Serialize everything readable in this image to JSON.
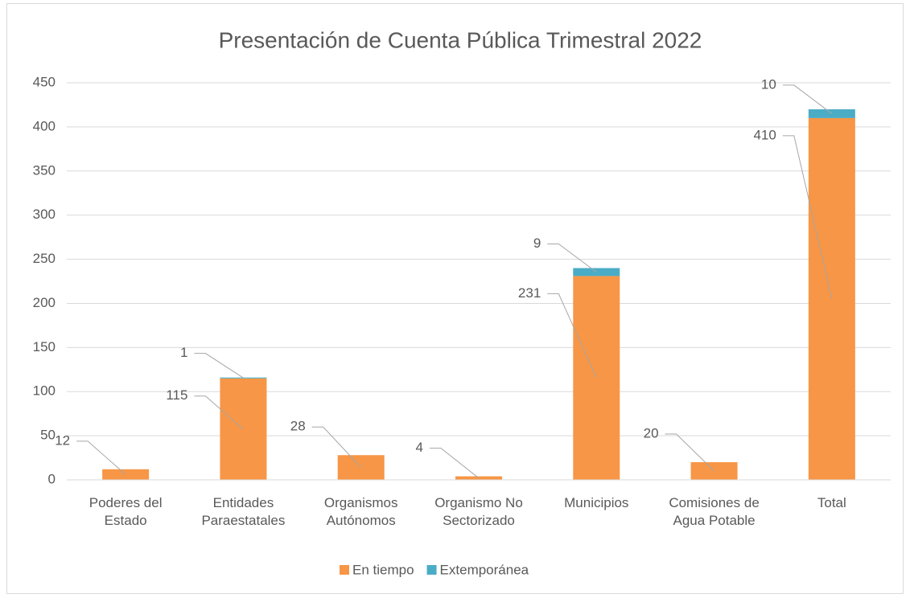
{
  "chart_data": {
    "type": "bar",
    "stacked": true,
    "title": "Presentación de Cuenta Pública Trimestral 2022",
    "categories": [
      "Poderes del Estado",
      "Entidades Paraestatales",
      "Organismos Autónomos",
      "Organismo No Sectorizado",
      "Municipios",
      "Comisiones de Agua Potable",
      "Total"
    ],
    "series": [
      {
        "name": "En tiempo",
        "color": "#f79646",
        "values": [
          12,
          115,
          28,
          4,
          231,
          20,
          410
        ]
      },
      {
        "name": "Extemporánea",
        "color": "#4bacc6",
        "values": [
          null,
          1,
          null,
          null,
          9,
          null,
          10
        ]
      }
    ],
    "ylim": [
      0,
      450
    ],
    "yticks": [
      0,
      50,
      100,
      150,
      200,
      250,
      300,
      350,
      400,
      450
    ],
    "grid": true,
    "legend": "bottom"
  }
}
